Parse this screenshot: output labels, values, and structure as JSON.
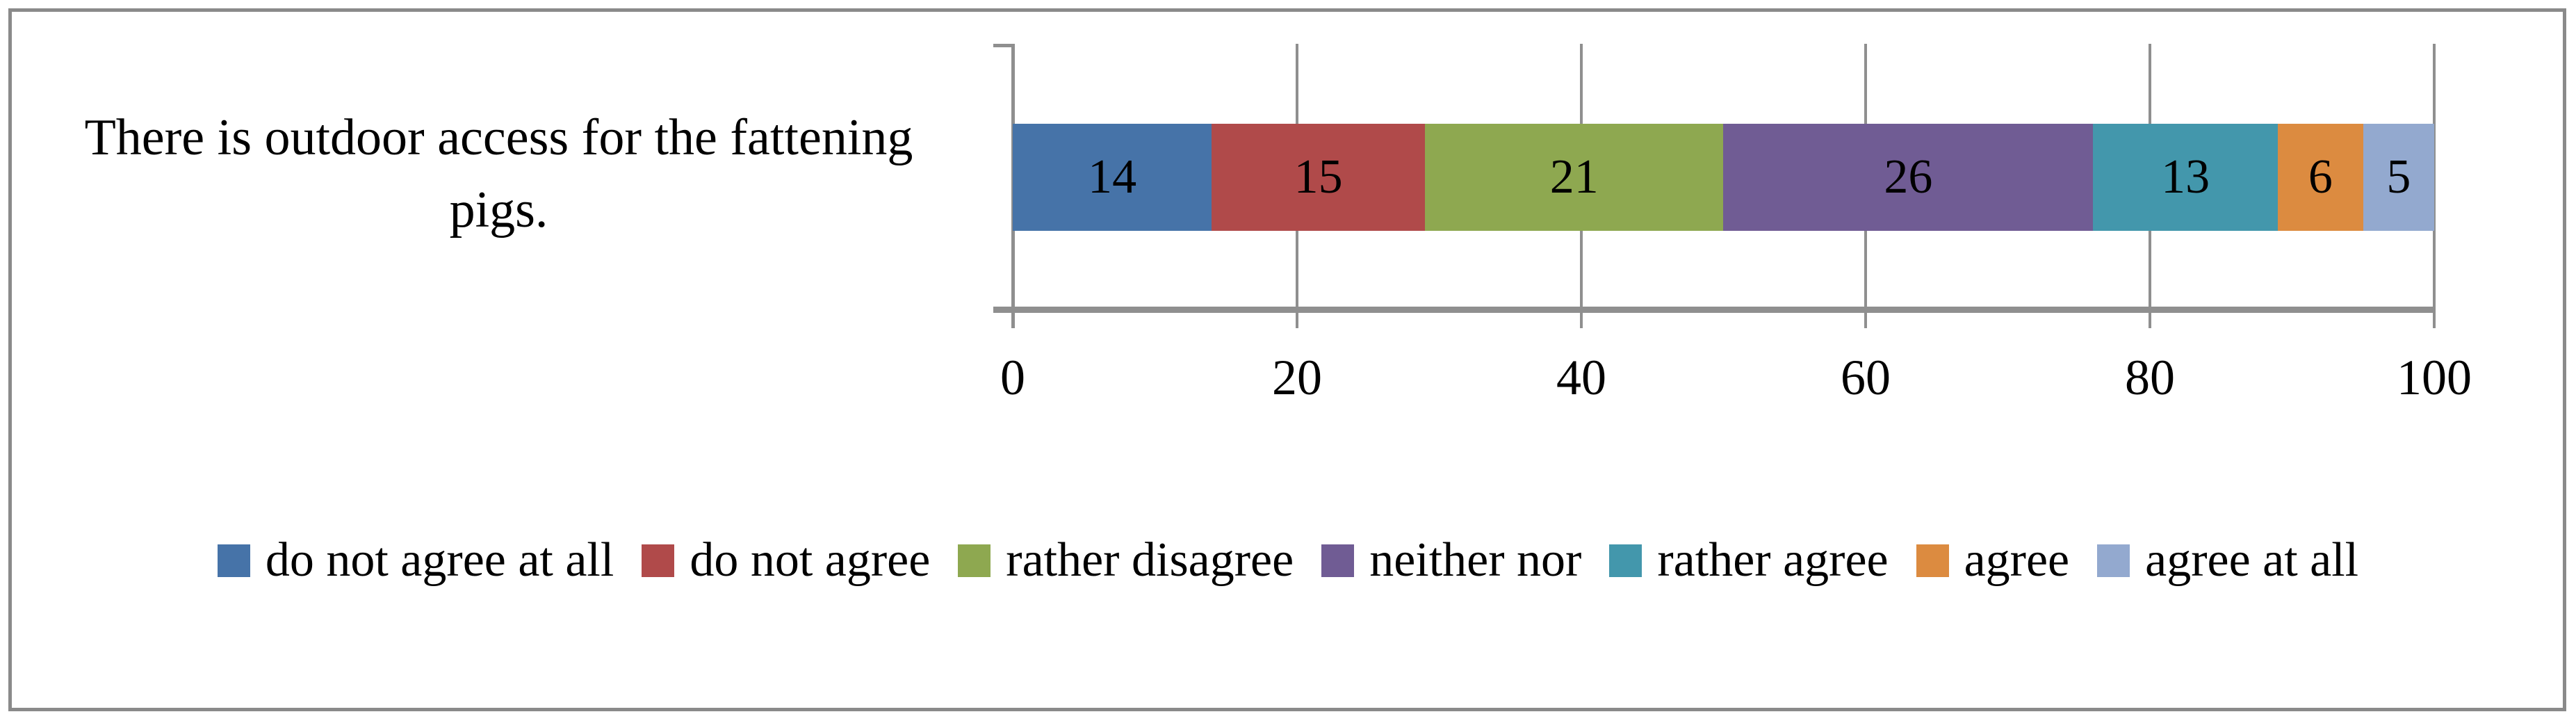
{
  "chart_data": {
    "type": "bar",
    "subtype": "horizontal-stacked",
    "title": "",
    "category": "There is outdoor access for the fattening pigs.",
    "category_lines": [
      "There is outdoor access for the fattening",
      "pigs."
    ],
    "series": [
      {
        "name": "do not agree at all",
        "value": 14,
        "color": "#4673A8"
      },
      {
        "name": "do not agree",
        "value": 15,
        "color": "#B04A4A"
      },
      {
        "name": "rather disagree",
        "value": 21,
        "color": "#8EA850"
      },
      {
        "name": "neither nor",
        "value": 26,
        "color": "#705C94"
      },
      {
        "name": "rather agree",
        "value": 13,
        "color": "#4397AC"
      },
      {
        "name": "agree",
        "value": 6,
        "color": "#DC8B40"
      },
      {
        "name": "agree at all",
        "value": 5,
        "color": "#93A9CF"
      }
    ],
    "xticks": [
      0,
      20,
      40,
      60,
      80,
      100
    ],
    "xlim": [
      0,
      100
    ],
    "xlabel": "",
    "ylabel": "",
    "grid": "vertical-major",
    "legend_position": "bottom",
    "axis_color": "#8f8f8f",
    "frame_color": "#8a8a8a",
    "label_color": "#000000"
  }
}
